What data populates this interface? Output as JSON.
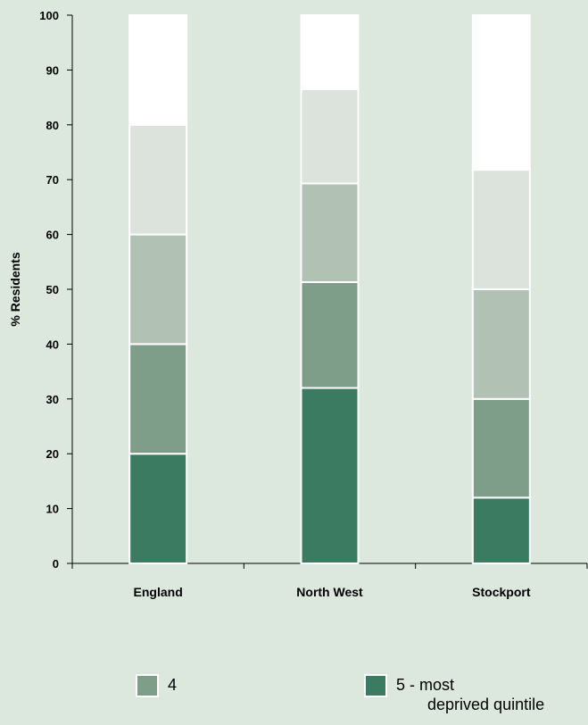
{
  "chart_data": {
    "type": "bar",
    "stacked": true,
    "title": "",
    "xlabel": "",
    "ylabel": "% Residents",
    "ylim": [
      0,
      100
    ],
    "yticks": [
      "0",
      "10",
      "20",
      "30",
      "40",
      "50",
      "60",
      "70",
      "80",
      "90",
      "100"
    ],
    "categories": [
      "England",
      "North West",
      "Stockport"
    ],
    "series": [
      {
        "name": "5 - most deprived quintile",
        "color": "#3a7b62",
        "values": [
          20,
          32,
          12
        ]
      },
      {
        "name": "4",
        "color": "#7f9e8a",
        "values": [
          20,
          19.3,
          18
        ]
      },
      {
        "name": "",
        "color": "#b1c2b5",
        "values": [
          20,
          18,
          20
        ]
      },
      {
        "name": "",
        "color": "#dce2dc",
        "values": [
          20,
          17.2,
          21.8
        ]
      },
      {
        "name": "",
        "color": "#ffffff",
        "values": [
          20,
          13.5,
          28.2
        ]
      }
    ],
    "grid": false,
    "legend_position": "bottom"
  },
  "legend": {
    "items": [
      {
        "label": "4",
        "color": "#7f9e8a"
      },
      {
        "label": "5 - most\n       deprived quintile",
        "color": "#3a7b62"
      }
    ]
  }
}
